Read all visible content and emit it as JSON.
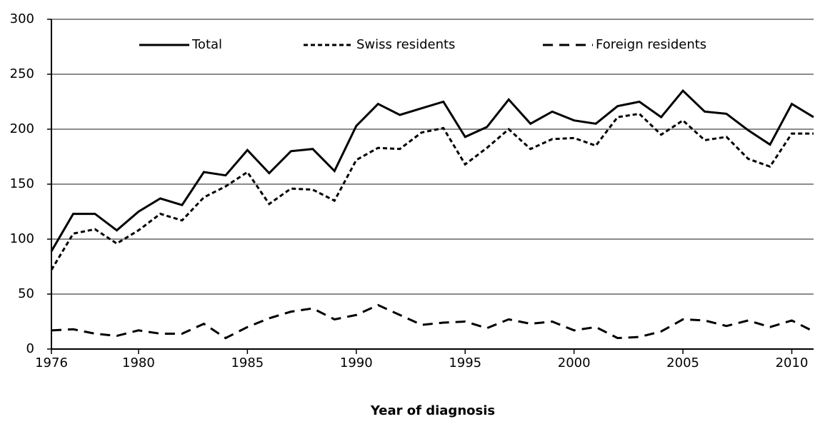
{
  "chart_data": {
    "type": "line",
    "x_label": "Year of diagnosis",
    "x": [
      1976,
      1977,
      1978,
      1979,
      1980,
      1981,
      1982,
      1983,
      1984,
      1985,
      1986,
      1987,
      1988,
      1989,
      1990,
      1991,
      1992,
      1993,
      1994,
      1995,
      1996,
      1997,
      1998,
      1999,
      2000,
      2001,
      2002,
      2003,
      2004,
      2005,
      2006,
      2007,
      2008,
      2009,
      2010,
      2011
    ],
    "series": [
      {
        "name": "Total",
        "color": "#000000",
        "dash": "solid",
        "values": [
          89,
          123,
          123,
          108,
          125,
          137,
          131,
          161,
          158,
          181,
          160,
          180,
          182,
          162,
          203,
          223,
          213,
          219,
          225,
          193,
          202,
          227,
          205,
          216,
          208,
          205,
          221,
          225,
          211,
          235,
          216,
          214,
          199,
          186,
          223,
          211
        ]
      },
      {
        "name": "Swiss residents",
        "color": "#000000",
        "dash": "dotted",
        "values": [
          72,
          105,
          109,
          96,
          108,
          123,
          117,
          138,
          148,
          161,
          132,
          146,
          145,
          135,
          172,
          183,
          182,
          197,
          201,
          168,
          183,
          200,
          182,
          191,
          192,
          185,
          211,
          214,
          195,
          208,
          190,
          193,
          173,
          166,
          196,
          196
        ]
      },
      {
        "name": "Foreign residents",
        "color": "#000000",
        "dash": "dashed",
        "values": [
          17,
          18,
          14,
          12,
          17,
          14,
          14,
          23,
          10,
          20,
          28,
          34,
          37,
          27,
          31,
          40,
          31,
          22,
          24,
          25,
          19,
          27,
          23,
          25,
          17,
          20,
          10,
          11,
          16,
          27,
          26,
          21,
          26,
          20,
          26,
          16
        ]
      }
    ],
    "xlim": [
      1976,
      2011
    ],
    "xticks": [
      1976,
      1980,
      1985,
      1990,
      1995,
      2000,
      2005,
      2010
    ],
    "ylim": [
      0,
      300
    ],
    "yticks": [
      0,
      50,
      100,
      150,
      200,
      250,
      300
    ],
    "grid": true,
    "legend": "top"
  }
}
